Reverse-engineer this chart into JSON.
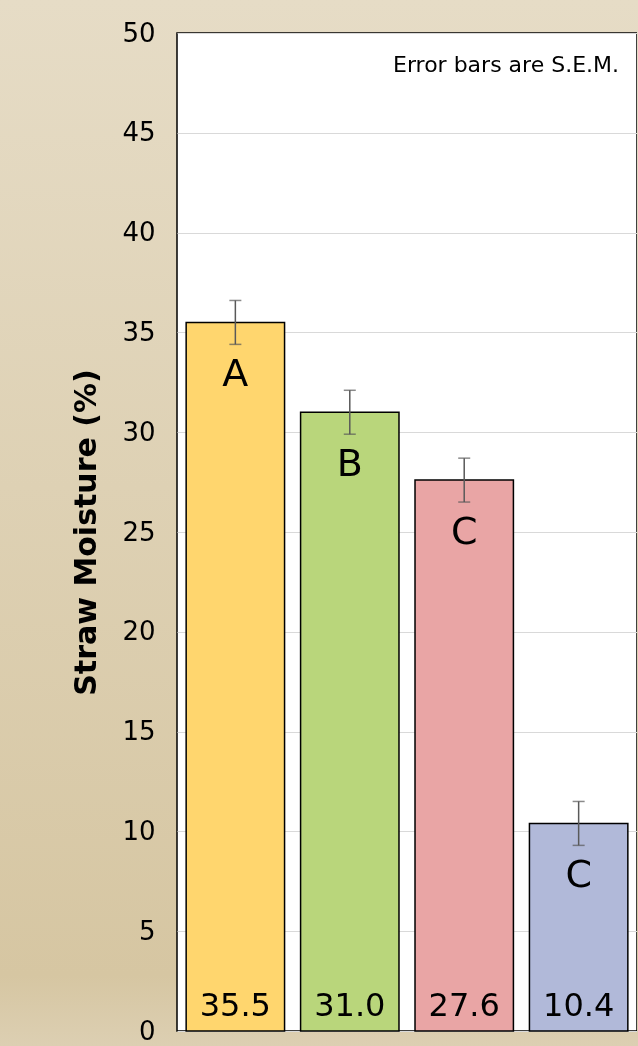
{
  "chart_data": {
    "type": "bar",
    "ylabel": "Straw Moisture (%)",
    "categories": [
      null,
      null,
      null,
      null
    ],
    "values": [
      35.5,
      31.0,
      27.6,
      10.4
    ],
    "colors": [
      "#ffd66e",
      "#b9d67b",
      "#e9a5a5",
      "#b1b9d9"
    ],
    "errors": [
      1.1,
      1.1,
      1.1,
      1.1
    ],
    "value_labels": [
      "35.5",
      "31.0",
      "27.6",
      "10.4"
    ],
    "ylim": [
      0,
      50
    ],
    "yticks": [
      0,
      5,
      10,
      15,
      20,
      25,
      30,
      35,
      40,
      45,
      50
    ],
    "grid": "y",
    "tick_labels": "y",
    "annotations": [
      "Error bars are S.E.M.",
      "A",
      "B",
      "C",
      "C"
    ]
  }
}
